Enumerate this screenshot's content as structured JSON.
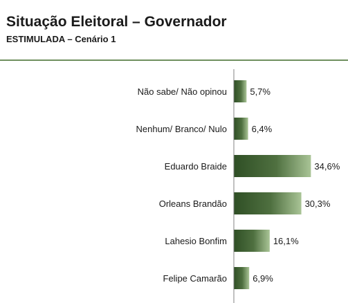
{
  "header": {
    "title": "Situação Eleitoral – Governador",
    "subtitle": "ESTIMULADA – Cenário 1"
  },
  "colors": {
    "bar_dark": "#2f4f25",
    "bar_light": "#a9c496",
    "axis": "#808080",
    "rule": "#6f8f5e"
  },
  "chart_data": {
    "type": "bar",
    "orientation": "horizontal",
    "categories": [
      "Não sabe/ Não opinou",
      "Nenhum/ Branco/ Nulo",
      "Eduardo Braide",
      "Orleans Brandão",
      "Lahesio Bonfim",
      "Felipe Camarão"
    ],
    "values": [
      5.7,
      6.4,
      34.6,
      30.3,
      16.1,
      6.9
    ],
    "value_labels": [
      "5,7%",
      "6,4%",
      "34,6%",
      "30,3%",
      "16,1%",
      "6,9%"
    ],
    "unit": "%",
    "xlim": [
      0,
      40
    ],
    "grid": false,
    "legend": "none"
  }
}
